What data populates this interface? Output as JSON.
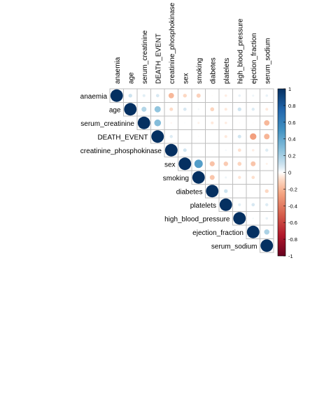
{
  "chart_data": {
    "type": "heatmap",
    "variables": [
      "anaemia",
      "age",
      "serum_creatinine",
      "DEATH_EVENT",
      "creatinine_phosphokinase",
      "sex",
      "smoking",
      "diabetes",
      "platelets",
      "high_blood_pressure",
      "ejection_fraction",
      "serum_sodium"
    ],
    "matrix_type": "upper",
    "matrix": [
      [
        1.0,
        0.09,
        0.05,
        0.07,
        -0.19,
        -0.09,
        -0.11,
        -0.01,
        -0.04,
        0.04,
        0.03,
        0.04
      ],
      [
        null,
        1.0,
        0.16,
        0.25,
        -0.08,
        0.07,
        0.02,
        -0.1,
        -0.05,
        0.09,
        0.06,
        -0.05
      ],
      [
        null,
        null,
        1.0,
        0.29,
        -0.02,
        0.01,
        -0.03,
        -0.05,
        -0.04,
        -0.01,
        -0.01,
        -0.19
      ],
      [
        null,
        null,
        null,
        1.0,
        0.06,
        -0.0,
        -0.01,
        -0.0,
        -0.05,
        0.08,
        -0.27,
        -0.2
      ],
      [
        null,
        null,
        null,
        null,
        1.0,
        0.08,
        0.0,
        -0.01,
        0.02,
        -0.07,
        -0.04,
        0.06
      ],
      [
        null,
        null,
        null,
        null,
        null,
        1.0,
        0.45,
        -0.16,
        -0.13,
        -0.1,
        -0.15,
        -0.03
      ],
      [
        null,
        null,
        null,
        null,
        null,
        null,
        1.0,
        -0.15,
        0.03,
        -0.06,
        -0.07,
        0.0
      ],
      [
        null,
        null,
        null,
        null,
        null,
        null,
        null,
        1.0,
        0.09,
        -0.01,
        -0.0,
        -0.09
      ],
      [
        null,
        null,
        null,
        null,
        null,
        null,
        null,
        null,
        1.0,
        0.05,
        0.07,
        0.06
      ],
      [
        null,
        null,
        null,
        null,
        null,
        null,
        null,
        null,
        null,
        1.0,
        0.02,
        0.04
      ],
      [
        null,
        null,
        null,
        null,
        null,
        null,
        null,
        null,
        null,
        null,
        1.0,
        0.18
      ],
      [
        null,
        null,
        null,
        null,
        null,
        null,
        null,
        null,
        null,
        null,
        null,
        1.0
      ]
    ],
    "legend": {
      "range": [
        -1,
        1
      ],
      "ticks": [
        "1",
        "0.8",
        "0.6",
        "0.4",
        "0.2",
        "0",
        "-0.2",
        "-0.4",
        "-0.6",
        "-0.8",
        "-1"
      ],
      "placement": "right"
    },
    "grid": true
  },
  "colors": {
    "negative_end": "#67001f",
    "neutral": "#ffffff",
    "positive_end": "#053061",
    "grid": "#bebebe"
  }
}
